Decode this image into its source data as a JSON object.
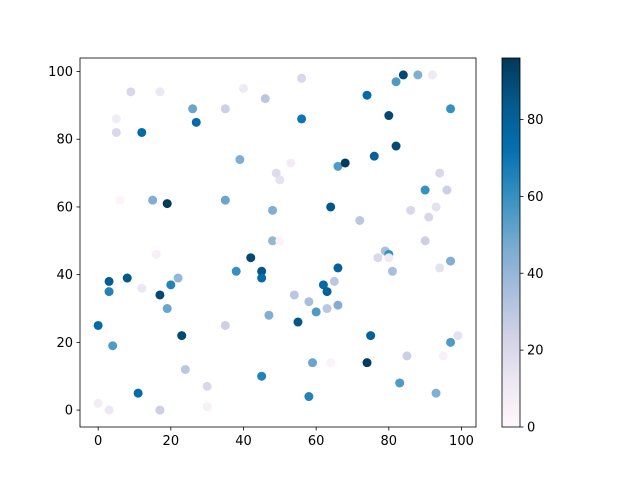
{
  "chart_data": {
    "type": "scatter",
    "x": [
      0,
      3,
      0,
      3,
      3,
      4,
      5,
      5,
      6,
      8,
      9,
      11,
      12,
      12,
      15,
      16,
      17,
      17,
      17,
      19,
      19,
      20,
      22,
      23,
      24,
      26,
      27,
      30,
      30,
      35,
      35,
      35,
      38,
      39,
      40,
      42,
      45,
      45,
      45,
      46,
      47,
      48,
      48,
      49,
      50,
      50,
      53,
      54,
      55,
      56,
      56,
      58,
      58,
      59,
      60,
      62,
      63,
      63,
      64,
      64,
      65,
      66,
      66,
      66,
      68,
      72,
      74,
      74,
      75,
      76,
      77,
      79,
      80,
      80,
      80,
      81,
      82,
      82,
      83,
      84,
      85,
      86,
      88,
      90,
      90,
      91,
      92,
      93,
      93,
      94,
      94,
      95,
      96,
      97,
      97,
      97,
      99
    ],
    "y": [
      2,
      0,
      25,
      38,
      35,
      19,
      86,
      82,
      62,
      39,
      94,
      5,
      82,
      36,
      62,
      46,
      94,
      0,
      34,
      61,
      30,
      37,
      39,
      22,
      12,
      89,
      85,
      7,
      1,
      89,
      62,
      25,
      41,
      74,
      95,
      45,
      41,
      39,
      10,
      92,
      28,
      59,
      50,
      70,
      68,
      50,
      73,
      34,
      26,
      98,
      86,
      32,
      4,
      14,
      29,
      37,
      35,
      30,
      14,
      60,
      38,
      72,
      31,
      42,
      73,
      56,
      93,
      14,
      22,
      75,
      45,
      47,
      46,
      45,
      87,
      41,
      78,
      97,
      8,
      99,
      16,
      59,
      99,
      50,
      65,
      57,
      99,
      60,
      5,
      70,
      42,
      16,
      65,
      89,
      44,
      20,
      22
    ],
    "c": [
      8,
      12,
      75,
      82,
      65,
      55,
      8,
      20,
      2,
      85,
      20,
      75,
      75,
      12,
      45,
      5,
      12,
      25,
      90,
      95,
      50,
      65,
      40,
      90,
      30,
      50,
      75,
      20,
      5,
      25,
      50,
      25,
      60,
      45,
      10,
      90,
      85,
      75,
      65,
      30,
      45,
      45,
      40,
      18,
      15,
      3,
      8,
      30,
      85,
      20,
      70,
      35,
      65,
      50,
      55,
      75,
      80,
      30,
      3,
      85,
      30,
      55,
      45,
      80,
      95,
      30,
      75,
      95,
      80,
      80,
      20,
      35,
      60,
      10,
      90,
      35,
      90,
      55,
      55,
      90,
      25,
      20,
      45,
      25,
      60,
      20,
      10,
      15,
      45,
      20,
      15,
      5,
      25,
      60,
      45,
      55,
      15
    ],
    "cmap": "PuBu",
    "xlim": [
      -5,
      104
    ],
    "xticks": [
      0,
      20,
      40,
      60,
      80,
      100
    ],
    "ylim": [
      -5,
      104
    ],
    "yticks": [
      0,
      20,
      40,
      60,
      80,
      100
    ],
    "clim": [
      0,
      96
    ],
    "cticks": [
      0,
      20,
      40,
      60,
      80
    ]
  }
}
